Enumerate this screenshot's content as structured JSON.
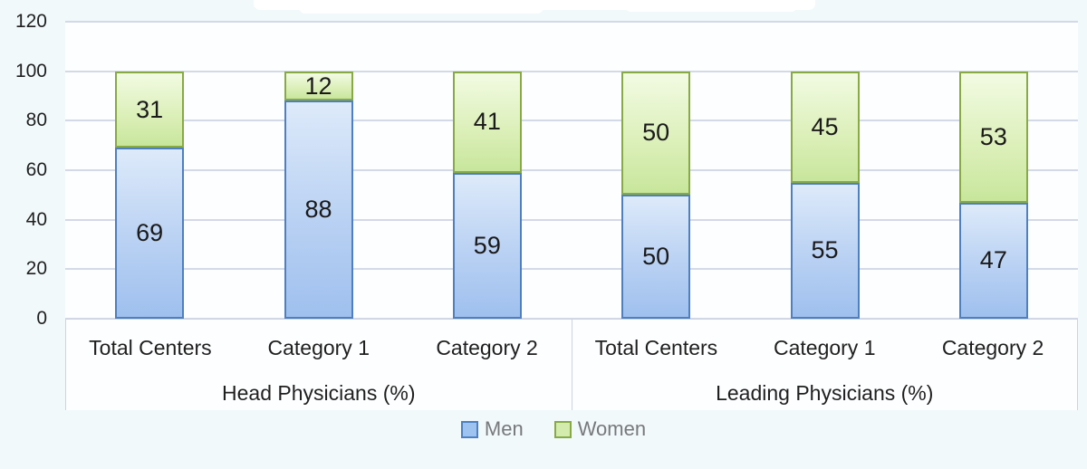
{
  "chart_data": {
    "type": "bar",
    "variant": "stacked-column",
    "title": "",
    "xlabel": "",
    "ylabel": "",
    "ylim": [
      0,
      120
    ],
    "y_ticks": [
      120,
      100,
      80,
      60,
      40,
      20,
      0
    ],
    "grid": true,
    "legend_position": "bottom",
    "groups": [
      {
        "label": "Head Physicians (%)",
        "categories": [
          "Total Centers",
          "Category 1",
          "Category 2"
        ],
        "series": [
          {
            "name": "Men",
            "values": [
              69,
              88,
              59
            ]
          },
          {
            "name": "Women",
            "values": [
              31,
              12,
              41
            ]
          }
        ]
      },
      {
        "label": "Leading Physicians (%)",
        "categories": [
          "Total Centers",
          "Category 1",
          "Category 2"
        ],
        "series": [
          {
            "name": "Men",
            "values": [
              50,
              55,
              47
            ]
          },
          {
            "name": "Women",
            "values": [
              50,
              45,
              53
            ]
          }
        ]
      }
    ],
    "legend": [
      {
        "label": "Men"
      },
      {
        "label": "Women"
      }
    ],
    "colors": {
      "men_fill_top": "#ddeafa",
      "men_fill_bottom": "#9fc0ee",
      "men_border": "#4e80c0",
      "women_fill_top": "#f2fbe3",
      "women_fill_bottom": "#c8e69c",
      "women_border": "#87aa44",
      "gridline": "#d3d9e6",
      "label_text": "#1f1f1f",
      "legend_text": "#77797c",
      "chart_background": "#f1f9fb",
      "plot_background": "#fdfeff"
    }
  }
}
